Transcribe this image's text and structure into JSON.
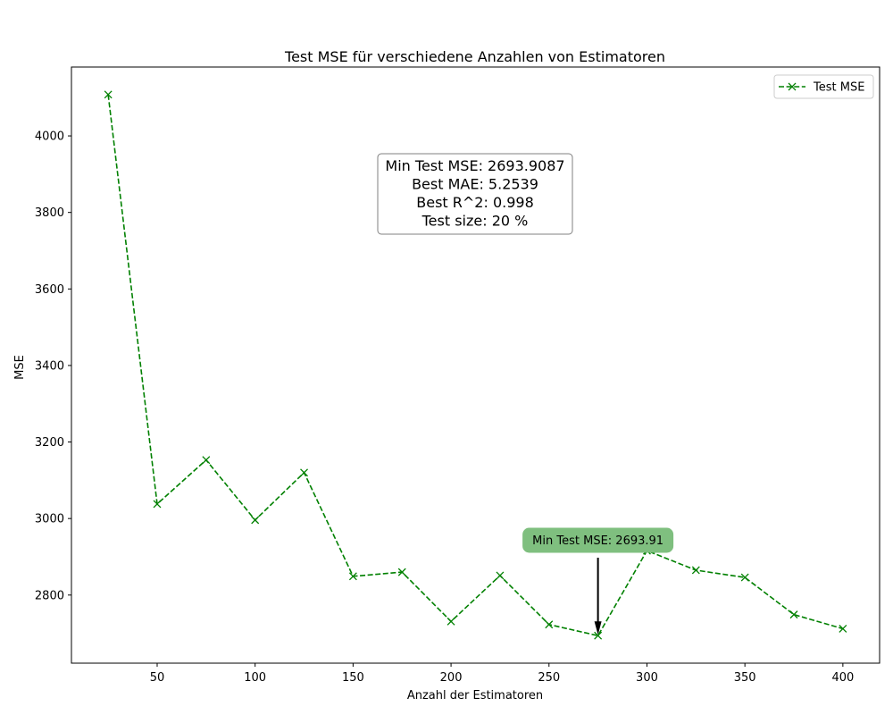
{
  "chart_data": {
    "type": "line",
    "title": "Test MSE für verschiedene Anzahlen von Estimatoren",
    "xlabel": "Anzahl der Estimatoren",
    "ylabel": "MSE",
    "xlim": [
      6.25,
      418.75
    ],
    "ylim": [
      2622,
      4180
    ],
    "x_ticks": [
      50,
      100,
      150,
      200,
      250,
      300,
      350,
      400
    ],
    "y_ticks": [
      2800,
      3000,
      3200,
      3400,
      3600,
      3800,
      4000
    ],
    "grid": false,
    "legend_position": "top-right",
    "series": [
      {
        "name": "Test MSE",
        "color": "#008000",
        "line_style": "dashed",
        "marker": "x",
        "x": [
          25,
          50,
          75,
          100,
          125,
          150,
          175,
          200,
          225,
          250,
          275,
          300,
          325,
          350,
          375,
          400
        ],
        "values": [
          4108,
          3038,
          3153,
          2996,
          3120,
          2849,
          2860,
          2731,
          2851,
          2723,
          2693.9087,
          2916,
          2865,
          2846,
          2749,
          2712
        ]
      }
    ],
    "info_box": {
      "lines": [
        "Min Test MSE: 2693.9087",
        "Best MAE: 5.2539",
        "Best R^2: 0.998",
        "Test size: 20 %"
      ]
    },
    "annotation": {
      "text": "Min Test MSE: 2693.91",
      "x": 275,
      "y": 2693.9087,
      "box_color": "#7fbf7f"
    }
  }
}
